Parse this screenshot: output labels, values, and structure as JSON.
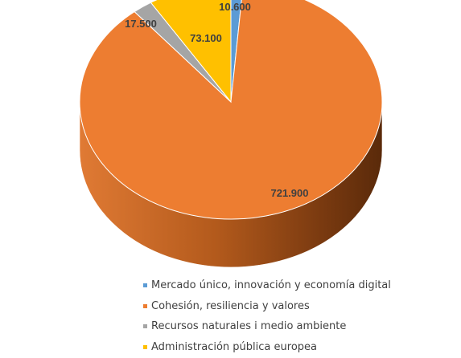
{
  "chart_data": {
    "type": "pie",
    "title": "",
    "style": "3d",
    "legend_position": "bottom",
    "categories": [
      "Mercado único, innovación y economía digital",
      "Cohesión, resiliencia y valores",
      "Recursos naturales i medio ambiente",
      "Administración pública europea"
    ],
    "values": [
      10600,
      721900,
      17500,
      73100
    ],
    "value_labels": [
      "10.600",
      "721.900",
      "17.500",
      "73.100"
    ],
    "colors": [
      "#5b9bd5",
      "#ed7d31",
      "#a5a5a5",
      "#ffc000"
    ],
    "side_colors": [
      "#2e5f8c",
      "#9c4a14",
      "#6b6b6b",
      "#a57c00"
    ]
  }
}
